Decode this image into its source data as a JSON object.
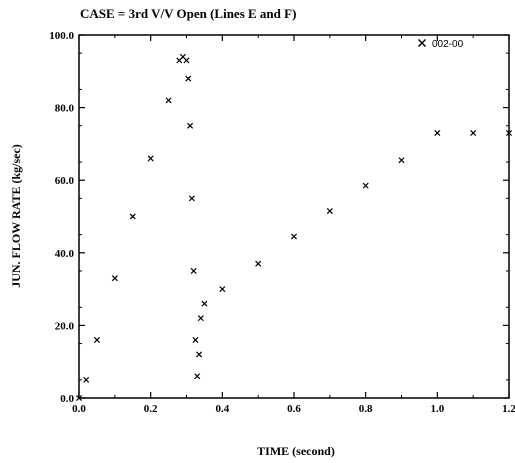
{
  "chart_data": {
    "type": "scatter",
    "title": "CASE = 3rd V/V Open (Lines E and F)",
    "xlabel": "TIME (second)",
    "ylabel": "JUN. FLOW RATE (kg/sec)",
    "xlim": [
      0,
      1.2
    ],
    "ylim": [
      0,
      100
    ],
    "x_ticks": [
      "0.0",
      "0.2",
      "0.4",
      "0.6",
      "0.8",
      "1.0",
      "1.2"
    ],
    "y_ticks": [
      "0.0",
      "20.0",
      "40.0",
      "60.0",
      "80.0",
      "100.0"
    ],
    "grid": false,
    "legend_position": "top-right",
    "marker": "x",
    "series": [
      {
        "name": "002-00",
        "x": [
          0.0,
          0.02,
          0.05,
          0.1,
          0.15,
          0.2,
          0.25,
          0.28,
          0.29,
          0.3,
          0.305,
          0.31,
          0.315,
          0.32,
          0.325,
          0.33,
          0.335,
          0.34,
          0.35,
          0.4,
          0.5,
          0.6,
          0.7,
          0.8,
          0.9,
          1.0,
          1.1,
          1.2
        ],
        "y": [
          0.0,
          5.0,
          16.0,
          33.0,
          50.0,
          66.0,
          82.0,
          93.0,
          94.0,
          93.0,
          88.0,
          75.0,
          55.0,
          35.0,
          16.0,
          6.0,
          12.0,
          22.0,
          26.0,
          30.0,
          37.0,
          44.5,
          51.5,
          58.5,
          65.5,
          73.0,
          73.0,
          73.0
        ]
      }
    ]
  }
}
